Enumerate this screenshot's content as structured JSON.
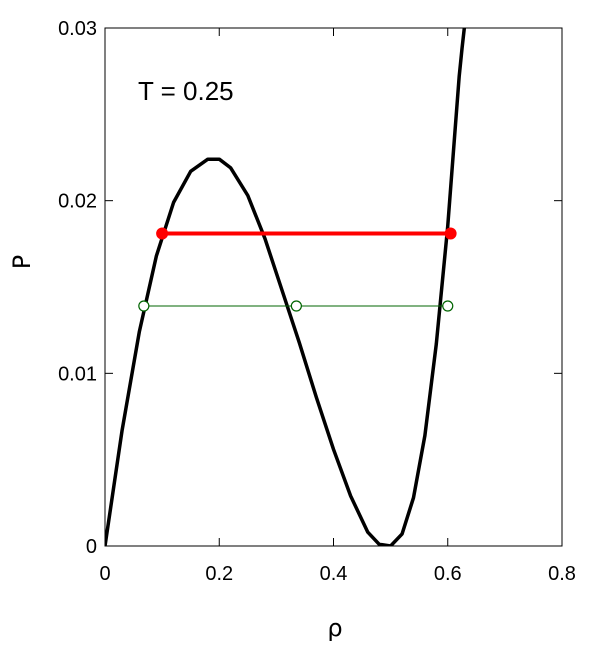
{
  "chart_data": {
    "type": "line",
    "title": "",
    "xlabel": "ρ",
    "ylabel": "P",
    "xlim": [
      0,
      0.8
    ],
    "ylim": [
      0,
      0.03
    ],
    "xticks": [
      0,
      0.2,
      0.4,
      0.6,
      0.8
    ],
    "xtick_labels": [
      "0",
      "0.2",
      "0.4",
      "0.6",
      "0.8"
    ],
    "yticks": [
      0,
      0.01,
      0.02,
      0.03
    ],
    "ytick_labels": [
      "0",
      "0.01",
      "0.02",
      "0.03"
    ],
    "grid": false,
    "annotation": "T = 0.25",
    "series": [
      {
        "color": "#000000",
        "style": "solid",
        "x": [
          0,
          0.03,
          0.06,
          0.09,
          0.12,
          0.15,
          0.18,
          0.2,
          0.22,
          0.25,
          0.28,
          0.31,
          0.34,
          0.37,
          0.4,
          0.43,
          0.46,
          0.48,
          0.5,
          0.52,
          0.54,
          0.56,
          0.58,
          0.6,
          0.61,
          0.62,
          0.625,
          0.63
        ],
        "y": [
          0,
          0.0067,
          0.0124,
          0.0168,
          0.0199,
          0.0217,
          0.0224,
          0.0224,
          0.0219,
          0.0203,
          0.0178,
          0.0148,
          0.0118,
          0.0086,
          0.0056,
          0.0029,
          0.0008,
          0.0001,
          0.0,
          0.0007,
          0.0028,
          0.0064,
          0.0117,
          0.0185,
          0.0229,
          0.0272,
          0.0288,
          0.0303
        ]
      },
      {
        "color": "#ff0000",
        "style": "solid",
        "x": [
          0.1,
          0.605
        ],
        "y": [
          0.0181,
          0.0181
        ]
      },
      {
        "color": "#006400",
        "style": "solid",
        "x": [
          0.068,
          0.335,
          0.6
        ],
        "y": [
          0.0139,
          0.0139,
          0.0139
        ]
      }
    ],
    "markers": [
      {
        "x": 0.1,
        "y": 0.0181,
        "fill": "#ff0000",
        "stroke": "#ff0000"
      },
      {
        "x": 0.605,
        "y": 0.0181,
        "fill": "#ff0000",
        "stroke": "#ff0000"
      },
      {
        "x": 0.068,
        "y": 0.0139,
        "fill": "#ffffff",
        "stroke": "#006400"
      },
      {
        "x": 0.335,
        "y": 0.0139,
        "fill": "#ffffff",
        "stroke": "#006400"
      },
      {
        "x": 0.6,
        "y": 0.0139,
        "fill": "#ffffff",
        "stroke": "#006400"
      }
    ]
  }
}
